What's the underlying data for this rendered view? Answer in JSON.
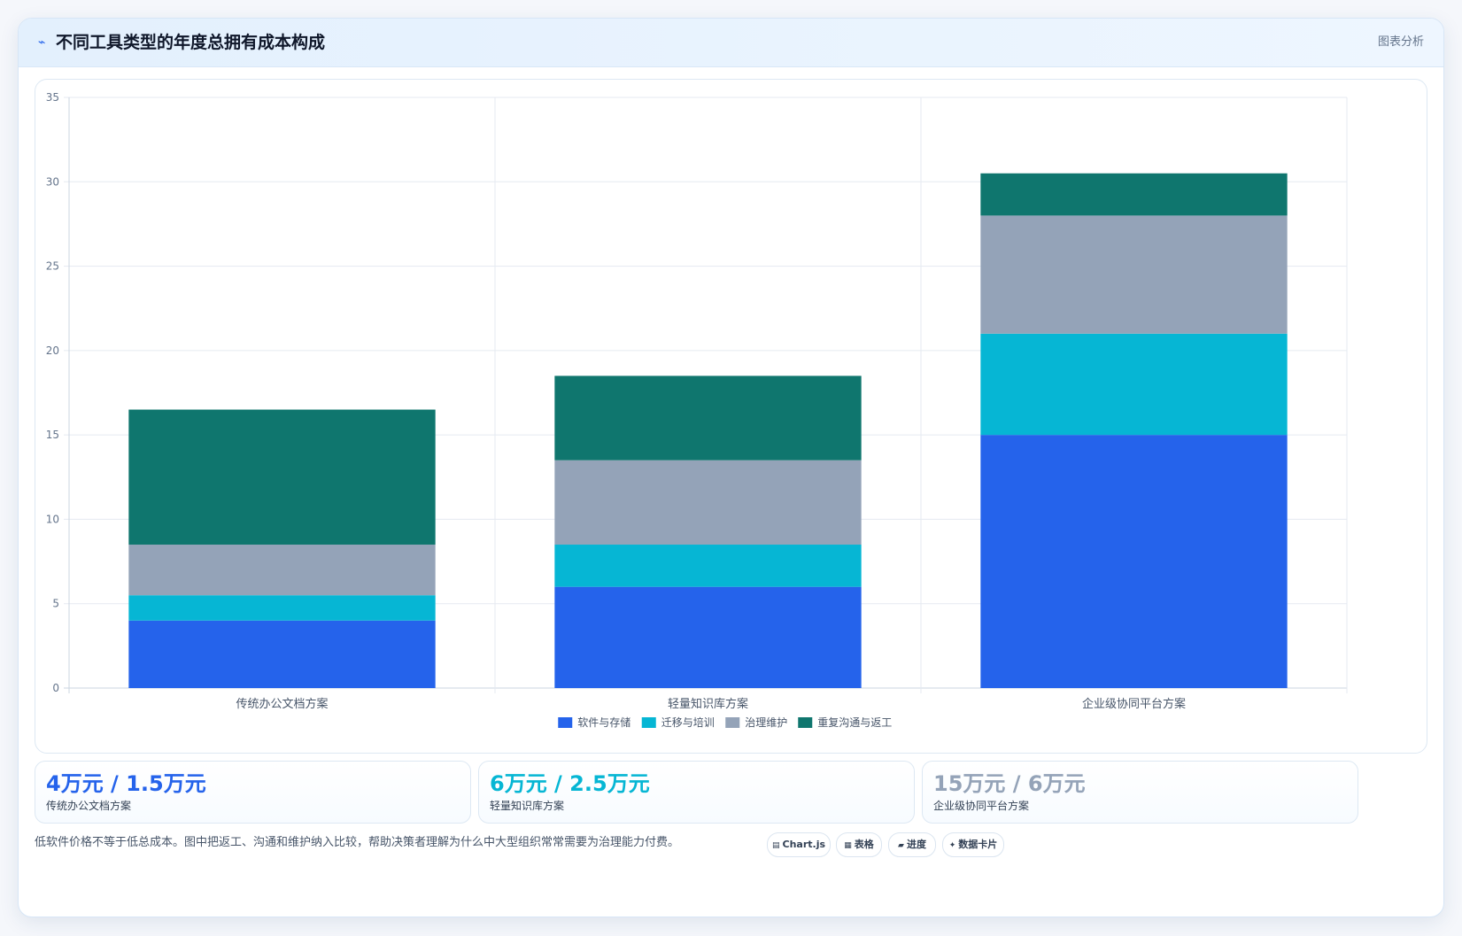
{
  "header": {
    "icon": "chart-icon",
    "title": "不同工具类型的年度总拥有成本构成",
    "right_label": "图表分析"
  },
  "chart_data": {
    "type": "bar",
    "stacked": true,
    "categories": [
      "传统办公文档方案",
      "轻量知识库方案",
      "企业级协同平台方案"
    ],
    "series": [
      {
        "name": "软件与存储",
        "color": "#2563eb",
        "values": [
          4,
          6,
          15
        ]
      },
      {
        "name": "迁移与培训",
        "color": "#06b6d4",
        "values": [
          1.5,
          2.5,
          6
        ]
      },
      {
        "name": "治理维护",
        "color": "#94a3b8",
        "values": [
          3,
          5,
          7
        ]
      },
      {
        "name": "重复沟通与返工",
        "color": "#0f766e",
        "values": [
          8,
          5,
          2.5
        ]
      }
    ],
    "ylim": [
      0,
      35
    ],
    "yticks": [
      0,
      5,
      10,
      15,
      20,
      25,
      30,
      35
    ],
    "grid": true,
    "legend_position": "bottom"
  },
  "stats": [
    {
      "value": "4万元 / 1.5万元",
      "label": "传统办公文档方案",
      "color": "#2563eb"
    },
    {
      "value": "6万元 / 2.5万元",
      "label": "轻量知识库方案",
      "color": "#06b6d4"
    },
    {
      "value": "15万元 / 6万元",
      "label": "企业级协同平台方案",
      "color": "#94a3b8"
    }
  ],
  "footnote": "低软件价格不等于低总成本。图中把返工、沟通和维护纳入比较，帮助决策者理解为什么中大型组织常常需要为治理能力付费。",
  "chips": [
    {
      "icon": "table-icon",
      "glyph": "▤",
      "label": "Chart.js"
    },
    {
      "icon": "table-icon",
      "glyph": "▦",
      "label": "表格"
    },
    {
      "icon": "progress-icon",
      "glyph": "▰",
      "label": "进度"
    },
    {
      "icon": "sparkle-icon",
      "glyph": "✦",
      "label": "数据卡片"
    }
  ]
}
